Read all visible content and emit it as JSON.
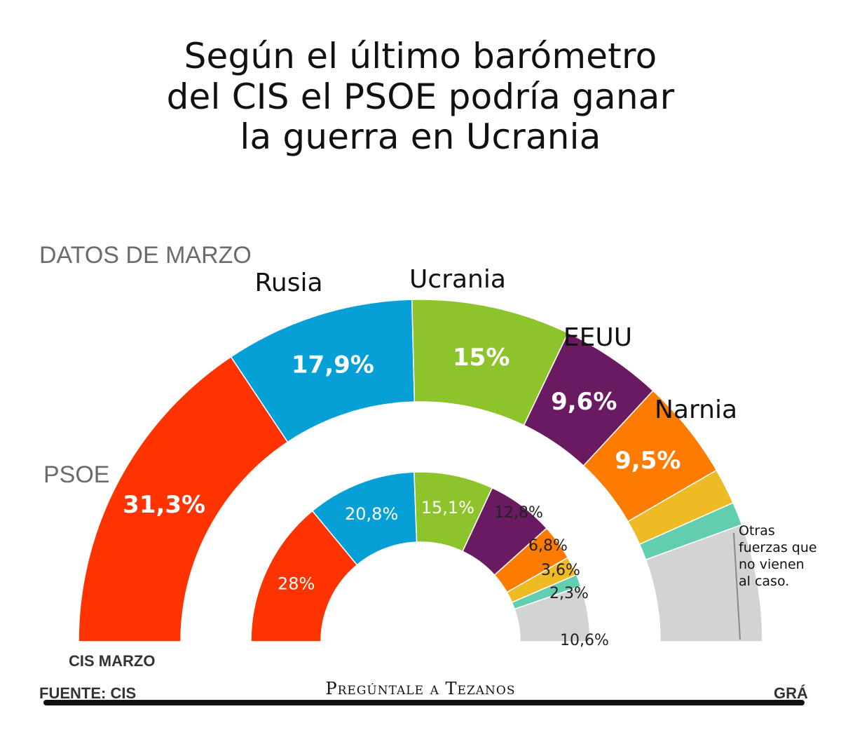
{
  "caption": {
    "line1": "Según el último barómetro",
    "line2": "del CIS el PSOE podría ganar",
    "line3": "la guerra en Ucrania"
  },
  "header_label": "DATOS DE MARZO",
  "label_cis_marzo": "CIS MARZO",
  "label_fuente": "FUENTE: CIS",
  "label_cut_right": "GRÁ",
  "watermark": "Pregúntale a Tezanos",
  "others_note": [
    "Otras",
    "fuerzas que",
    "no vienen",
    "al caso."
  ],
  "colors": {
    "red": "#fe3300",
    "blue": "#06a0d6",
    "green": "#8dc42c",
    "purple": "#6a1a61",
    "orange": "#fd7c00",
    "yellow": "#eebb24",
    "teal": "#63cdb0",
    "gray": "#d3d3d3"
  },
  "chart_data": {
    "type": "pie",
    "subtype": "half-donut (two concentric rings)",
    "series": [
      {
        "name": "outer ring",
        "slices": [
          {
            "label": "PSOE",
            "value": 31.3,
            "text": "31,3%",
            "color": "#fe3300"
          },
          {
            "label": "Rusia",
            "value": 17.9,
            "text": "17,9%",
            "color": "#06a0d6"
          },
          {
            "label": "Ucrania",
            "value": 15.0,
            "text": "15%",
            "color": "#8dc42c"
          },
          {
            "label": "EEUU",
            "value": 9.6,
            "text": "9,6%",
            "color": "#6a1a61"
          },
          {
            "label": "Narnia",
            "value": 9.5,
            "text": "9,5%",
            "color": "#fd7c00"
          },
          {
            "label": "",
            "value": 3.4,
            "text": "",
            "color": "#eebb24"
          },
          {
            "label": "",
            "value": 2.2,
            "text": "",
            "color": "#63cdb0"
          },
          {
            "label": "Otras fuerzas que no vienen al caso.",
            "value": 11.1,
            "text": "",
            "color": "#d3d3d3"
          }
        ]
      },
      {
        "name": "CIS MARZO",
        "slices": [
          {
            "value": 28.0,
            "text": "28%",
            "color": "#fe3300"
          },
          {
            "value": 20.8,
            "text": "20,8%",
            "color": "#06a0d6"
          },
          {
            "value": 15.1,
            "text": "15,1%",
            "color": "#8dc42c"
          },
          {
            "value": 12.8,
            "text": "12,8%",
            "color": "#6a1a61"
          },
          {
            "value": 6.8,
            "text": "6,8%",
            "color": "#fd7c00"
          },
          {
            "value": 3.6,
            "text": "3,6%",
            "color": "#eebb24"
          },
          {
            "value": 2.3,
            "text": "2,3%",
            "color": "#63cdb0"
          },
          {
            "value": 10.6,
            "text": "10,6%",
            "color": "#d3d3d3"
          }
        ]
      }
    ]
  }
}
